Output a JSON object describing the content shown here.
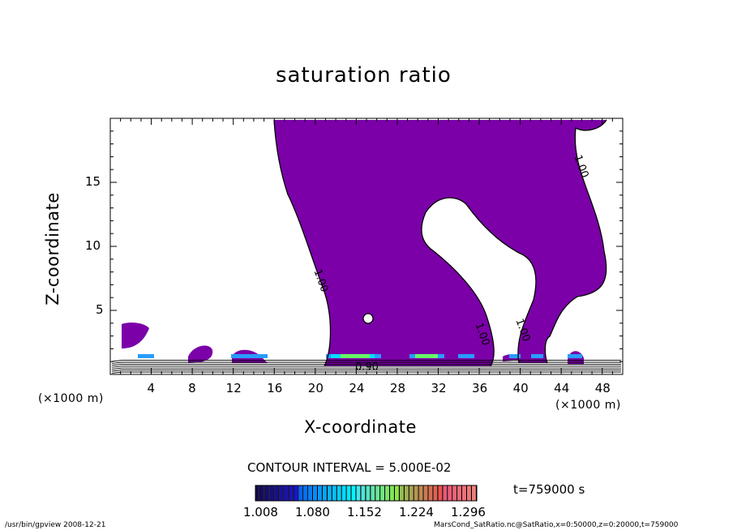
{
  "chart_data": {
    "type": "contour",
    "title": "saturation ratio",
    "xlabel": "X-coordinate",
    "ylabel": "Z-coordinate",
    "x_unit": "(×1000 m)",
    "xlim": [
      0,
      50
    ],
    "ylim": [
      0,
      20
    ],
    "x_ticks": [
      4,
      8,
      12,
      16,
      20,
      24,
      28,
      32,
      36,
      40,
      44,
      48
    ],
    "y_ticks": [
      5,
      10,
      15
    ],
    "contour_labels": [
      {
        "text": "1.00",
        "x": 20.5,
        "y": 7.3
      },
      {
        "text": "1.00",
        "x": 36.2,
        "y": 3.1
      },
      {
        "text": "1.00",
        "x": 40.2,
        "y": 3.4
      },
      {
        "text": "1.00",
        "x": 45.9,
        "y": 16.2
      },
      {
        "text": "0.90",
        "x": 25.0,
        "y": 0.5
      }
    ],
    "contour_interval": "CONTOUR INTERVAL = 5.000E-02",
    "time_label": "t=759000 s",
    "colorbar": {
      "labels": [
        "1.008",
        "1.080",
        "1.152",
        "1.224",
        "1.296"
      ],
      "fill_color": "#7b00a8"
    },
    "footer_left": "/usr/bin/gpview   2008-12-21",
    "footer_right": "MarsCond_SatRatio.nc@SatRatio,x=0:50000,z=0:20000,t=759000"
  }
}
